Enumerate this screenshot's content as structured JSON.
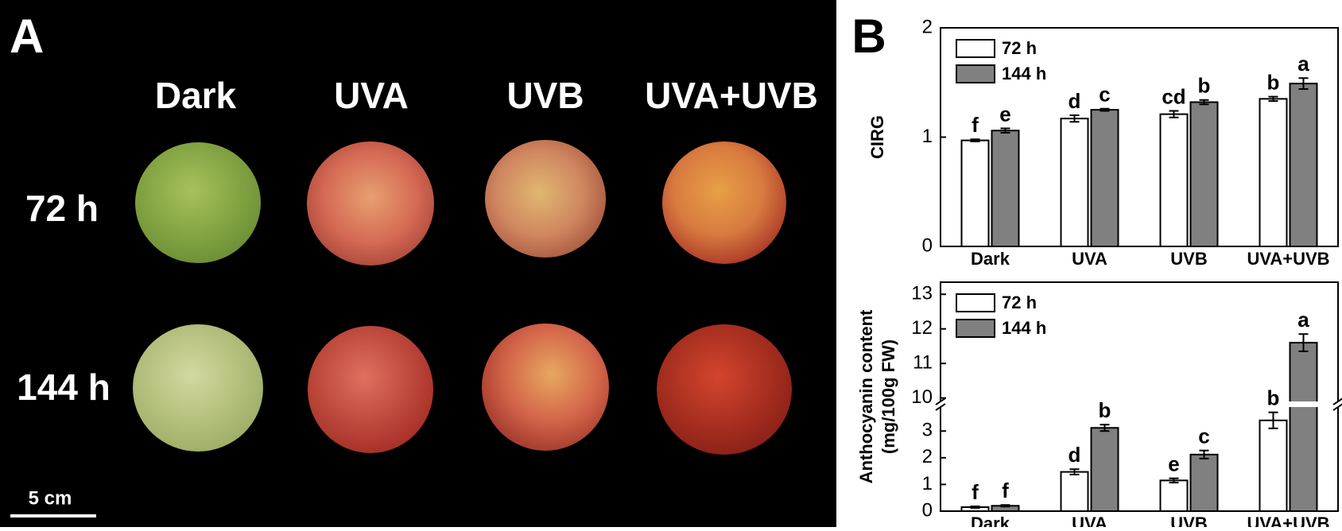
{
  "photo_panel": {
    "label": "A",
    "columns": [
      "Dark",
      "UVA",
      "UVB",
      "UVA+UVB"
    ],
    "rows": [
      "72 h",
      "144 h"
    ],
    "scale_bar": "5 cm"
  },
  "chart_panel_label": "B",
  "chart_data": [
    {
      "type": "bar",
      "ylabel": [
        "CIRG"
      ],
      "categories": [
        "Dark",
        "UVA",
        "UVB",
        "UVA+UVB"
      ],
      "series": [
        {
          "name": "72 h",
          "color": "#ffffff",
          "values": [
            0.97,
            1.17,
            1.21,
            1.35
          ],
          "errors": [
            0.01,
            0.03,
            0.03,
            0.02
          ],
          "letters": [
            "f",
            "d",
            "cd",
            "b"
          ]
        },
        {
          "name": "144 h",
          "color": "#808080",
          "values": [
            1.06,
            1.25,
            1.32,
            1.49
          ],
          "errors": [
            0.02,
            0.01,
            0.02,
            0.05
          ],
          "letters": [
            "e",
            "c",
            "b",
            "a"
          ]
        }
      ],
      "ylim": [
        0,
        2
      ],
      "yticks": [
        0,
        1,
        2
      ],
      "legend": "upper left"
    },
    {
      "type": "bar",
      "ylabel": [
        "Anthocyanin content",
        "(mg/100g FW)"
      ],
      "categories": [
        "Dark",
        "UVA",
        "UVB",
        "UVA+UVB"
      ],
      "series": [
        {
          "name": "72 h",
          "color": "#ffffff",
          "values": [
            0.15,
            1.47,
            1.15,
            3.4
          ],
          "errors": [
            0.03,
            0.1,
            0.08,
            0.3
          ],
          "letters": [
            "f",
            "d",
            "e",
            "b"
          ]
        },
        {
          "name": "144 h",
          "color": "#808080",
          "values": [
            0.2,
            3.12,
            2.12,
            11.6
          ],
          "errors": [
            0.03,
            0.12,
            0.15,
            0.25
          ],
          "letters": [
            "f",
            "b",
            "c",
            "a"
          ]
        }
      ],
      "ylim": [
        0,
        13.35
      ],
      "ybreak": [
        3.9,
        9.9
      ],
      "yticks": [
        0,
        1,
        2,
        3,
        10,
        11,
        12,
        13
      ],
      "legend": "upper left"
    }
  ]
}
